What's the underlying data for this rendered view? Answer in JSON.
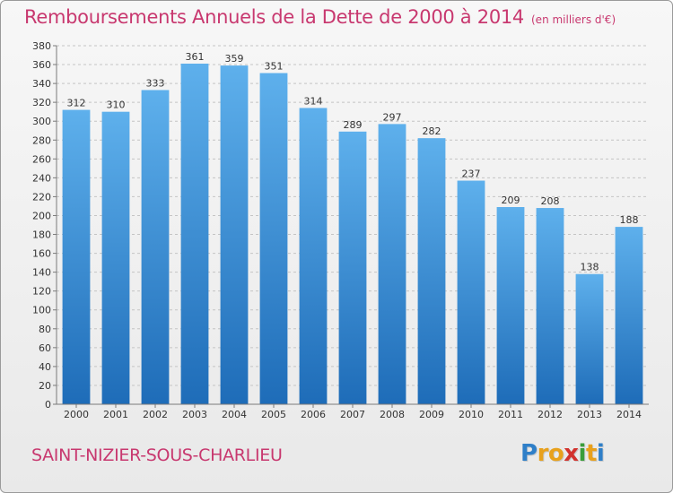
{
  "header": {
    "title": "Remboursements Annuels de la Dette de 2000 à 2014",
    "unit": "(en milliers d'€)"
  },
  "footer": {
    "commune": "SAINT-NIZIER-SOUS-CHARLIEU",
    "logo": "Proxiti",
    "logo_colors": [
      "#2f7fc8",
      "#e8a11c",
      "#e8a11c",
      "#d2322d",
      "#3a9d3a",
      "#e8a11c",
      "#2f7fc8"
    ]
  },
  "colors": {
    "title": "#c8386f",
    "bar_top": "#5eb0ec",
    "bar_bottom": "#1e6cb8",
    "grid": "#c4c4c4",
    "axis": "#7a7a7a"
  },
  "chart_data": {
    "type": "bar",
    "categories": [
      "2000",
      "2001",
      "2002",
      "2003",
      "2004",
      "2005",
      "2006",
      "2007",
      "2008",
      "2009",
      "2010",
      "2011",
      "2012",
      "2013",
      "2014"
    ],
    "values": [
      312,
      310,
      333,
      361,
      359,
      351,
      314,
      289,
      297,
      282,
      237,
      209,
      208,
      138,
      188
    ],
    "title": "Remboursements Annuels de la Dette de 2000 à 2014",
    "ylim": [
      0,
      380
    ],
    "ytick_step": 20,
    "grid": true
  }
}
